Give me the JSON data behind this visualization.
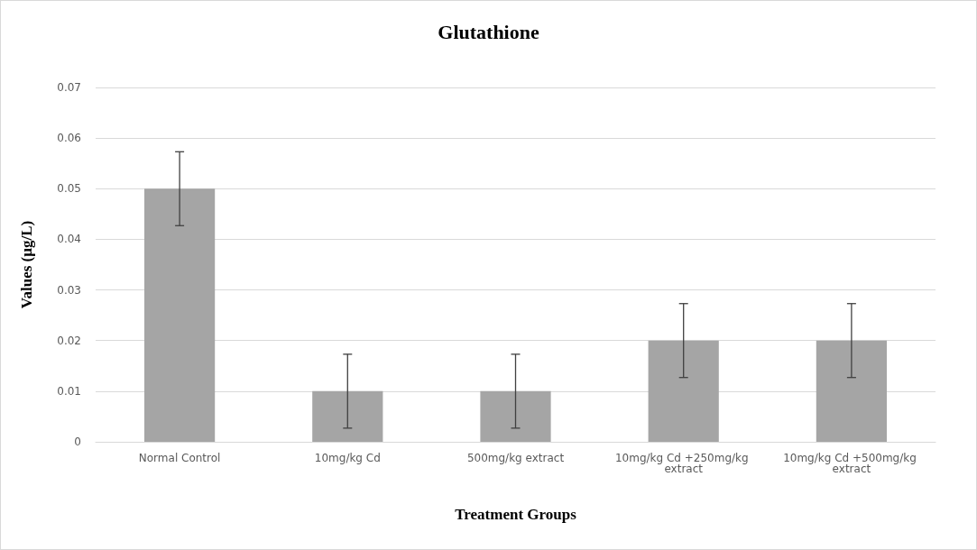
{
  "chart_data": {
    "type": "bar",
    "title": "Glutathione",
    "xlabel": "Treatment Groups",
    "ylabel": "Values (µg/L)",
    "categories": [
      "Normal Control",
      "10mg/kg Cd",
      "500mg/kg extract",
      "10mg/kg Cd +250mg/kg extract",
      "10mg/kg Cd +500mg/kg extract"
    ],
    "values": [
      0.05,
      0.01,
      0.01,
      0.02,
      0.02
    ],
    "errors": [
      0.0073,
      0.0073,
      0.0073,
      0.0073,
      0.0073
    ],
    "color": "#a5a5a5",
    "ylim": [
      0,
      0.07
    ],
    "yticks": [
      0,
      0.01,
      0.02,
      0.03,
      0.04,
      0.05,
      0.06,
      0.07
    ],
    "grid": "y"
  }
}
